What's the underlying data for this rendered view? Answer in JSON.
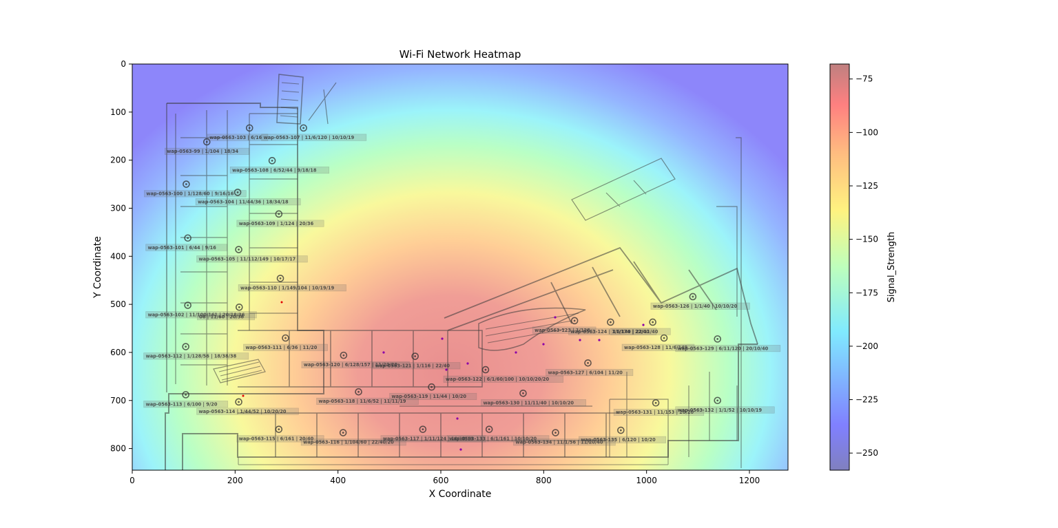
{
  "chart_data": {
    "type": "heatmap",
    "title": "Wi-Fi Network Heatmap",
    "xlabel": "X Coordinate",
    "ylabel": "Y Coordinate",
    "xlim": [
      0,
      1275
    ],
    "ylim": [
      845,
      0
    ],
    "y_inverted": true,
    "grid": false,
    "xticks": [
      0,
      200,
      400,
      600,
      800,
      1000,
      1200
    ],
    "yticks": [
      0,
      100,
      200,
      300,
      400,
      500,
      600,
      700,
      800
    ],
    "colorbar": {
      "label": "Signal_Strength",
      "range": [
        -258,
        -68
      ],
      "ticks": [
        -75,
        -100,
        -125,
        -150,
        -175,
        -200,
        -225,
        -250
      ],
      "colormap": "jet",
      "alpha": 0.5
    },
    "heat_center": {
      "x": 620,
      "y": 640
    },
    "background": "floor plan drawing with access point icons",
    "access_points": [
      {
        "label": "wap-0563-99 | 1/104 | 18/34",
        "x": 145,
        "y": 162
      },
      {
        "label": "wap-0563-100 | 1/128/60 | 9/16/16",
        "x": 105,
        "y": 250
      },
      {
        "label": "wap-0563-101 | 6/44 | 9/16",
        "x": 108,
        "y": 362
      },
      {
        "label": "wap-0563-102 | 11/100/161 | 20/18/36",
        "x": 108,
        "y": 502
      },
      {
        "label": "wap-0563-103 | 6/16",
        "x": 228,
        "y": 133
      },
      {
        "label": "wap-0563-104 | 11/44/36 | 18/34/18",
        "x": 205,
        "y": 267
      },
      {
        "label": "wap-0563-105 | 11/112/149 | 10/17/17",
        "x": 207,
        "y": 386
      },
      {
        "label": "06 | 11/60 | 20/36",
        "x": 208,
        "y": 506
      },
      {
        "label": "wap-0563-107 | 11/6/120 | 10/10/19",
        "x": 333,
        "y": 133
      },
      {
        "label": "wap-0563-108 | 6/52/44 | 9/18/18",
        "x": 272,
        "y": 201
      },
      {
        "label": "wap-0563-109 | 1/124 | 20/36",
        "x": 285,
        "y": 312
      },
      {
        "label": "wap-0563-110 | 1/149/104 | 10/19/19",
        "x": 288,
        "y": 446
      },
      {
        "label": "wap-0563-111 | 6/36 | 11/20",
        "x": 298,
        "y": 570
      },
      {
        "label": "wap-0563-112 | 1/128/56 | 18/38/38",
        "x": 104,
        "y": 588
      },
      {
        "label": "wap-0563-113 | 6/100 | 9/20",
        "x": 104,
        "y": 688
      },
      {
        "label": "wap-0563-114 | 1/44/52 | 10/20/20",
        "x": 207,
        "y": 703
      },
      {
        "label": "wap-0563-115 | 6/161 | 20/40",
        "x": 285,
        "y": 760
      },
      {
        "label": "wap-0563-116 | 1/104/60 | 22/40/20",
        "x": 410,
        "y": 767
      },
      {
        "label": "wap-0563-117 | 1/11/124 | 10/10/19",
        "x": 565,
        "y": 760
      },
      {
        "label": "wap-0563-118 | 11/6/52 | 11/11/19",
        "x": 440,
        "y": 682
      },
      {
        "label": "wap-0563-119 | 11/44 | 10/20",
        "x": 582,
        "y": 672
      },
      {
        "label": "wap-0563-120 | 6/128/157 | 11/20/20",
        "x": 411,
        "y": 606
      },
      {
        "label": "wap-0563-121 | 1/116 | 22/40",
        "x": 550,
        "y": 608
      },
      {
        "label": "wap-0563-122 | 6/1/60/100 | 10/10/20/20",
        "x": 687,
        "y": 636
      },
      {
        "label": "wap-0563-123 | 1/128",
        "x": 860,
        "y": 534
      },
      {
        "label": "wap-0563-124 | 1/6/149 | 22/11/40",
        "x": 930,
        "y": 537
      },
      {
        "label": "wap-0563-126 | 1/1/40 | 10/10/20",
        "x": 1090,
        "y": 484
      },
      {
        "label": "11/174 | 22/40",
        "x": 1012,
        "y": 537
      },
      {
        "label": "wap-0563-127 | 6/104 | 11/20",
        "x": 886,
        "y": 622
      },
      {
        "label": "wap-0563-128 | 11/6/149",
        "x": 1034,
        "y": 570
      },
      {
        "label": "wap-0563-129 | 6/11/120 | 20/10/40",
        "x": 1138,
        "y": 572
      },
      {
        "label": "wap-0563-130 | 11/11/40 | 10/10/20",
        "x": 760,
        "y": 685
      },
      {
        "label": "wap-0563-131 | 11/153 | 20/20",
        "x": 1018,
        "y": 705
      },
      {
        "label": "wap-0563-132 | 1/1/52 | 10/10/19",
        "x": 1138,
        "y": 700
      },
      {
        "label": "wap-0563-133 | 6/1/161 | 10/10/20",
        "x": 694,
        "y": 760
      },
      {
        "label": "wap-0563-134 | 11/1/56 | 11/20/40",
        "x": 823,
        "y": 767
      },
      {
        "label": "wap-0563-135 | 6/120 | 10/20",
        "x": 950,
        "y": 762
      }
    ]
  }
}
